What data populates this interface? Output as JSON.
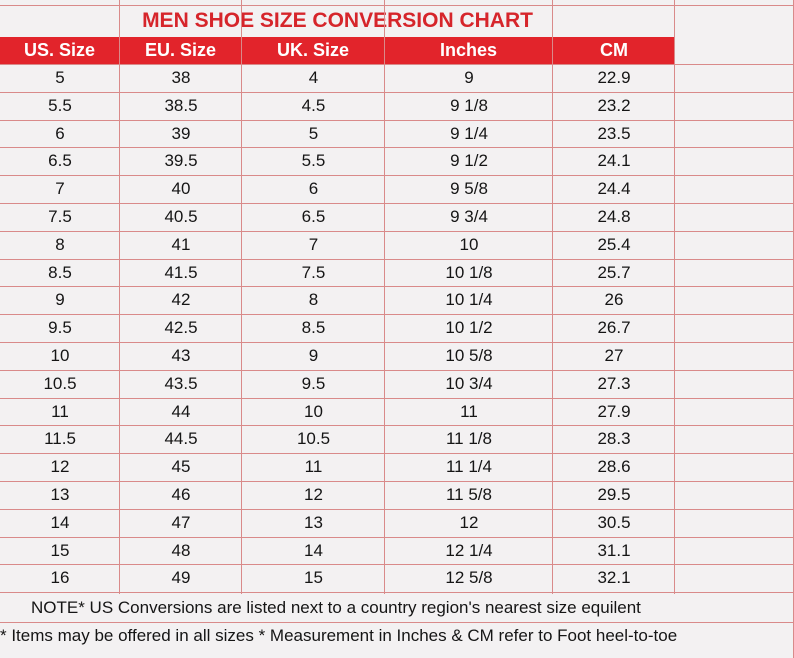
{
  "chart": {
    "title": "MEN SHOE SIZE CONVERSION CHART",
    "headers": [
      "US. Size",
      "EU. Size",
      "UK. Size",
      "Inches",
      "CM"
    ],
    "rows": [
      [
        "5",
        "38",
        "4",
        "9",
        "22.9"
      ],
      [
        "5.5",
        "38.5",
        "4.5",
        "9 1/8",
        "23.2"
      ],
      [
        "6",
        "39",
        "5",
        "9 1/4",
        "23.5"
      ],
      [
        "6.5",
        "39.5",
        "5.5",
        "9 1/2",
        "24.1"
      ],
      [
        "7",
        "40",
        "6",
        "9 5/8",
        "24.4"
      ],
      [
        "7.5",
        "40.5",
        "6.5",
        "9 3/4",
        "24.8"
      ],
      [
        "8",
        "41",
        "7",
        "10",
        "25.4"
      ],
      [
        "8.5",
        "41.5",
        "7.5",
        "10 1/8",
        "25.7"
      ],
      [
        "9",
        "42",
        "8",
        "10 1/4",
        "26"
      ],
      [
        "9.5",
        "42.5",
        "8.5",
        "10 1/2",
        "26.7"
      ],
      [
        "10",
        "43",
        "9",
        "10 5/8",
        "27"
      ],
      [
        "10.5",
        "43.5",
        "9.5",
        "10 3/4",
        "27.3"
      ],
      [
        "11",
        "44",
        "10",
        "11",
        "27.9"
      ],
      [
        "11.5",
        "44.5",
        "10.5",
        "11 1/8",
        "28.3"
      ],
      [
        "12",
        "45",
        "11",
        "11 1/4",
        "28.6"
      ],
      [
        "13",
        "46",
        "12",
        "11 5/8",
        "29.5"
      ],
      [
        "14",
        "47",
        "13",
        "12",
        "30.5"
      ],
      [
        "15",
        "48",
        "14",
        "12 1/4",
        "31.1"
      ],
      [
        "16",
        "49",
        "15",
        "12 5/8",
        "32.1"
      ]
    ],
    "note": "NOTE* US Conversions are listed next to a country region's nearest size equilent",
    "footnote": "* Items may be offered in all sizes * Measurement in Inches & CM refer to Foot heel-to-toe"
  },
  "colors": {
    "title": "#d6252b",
    "header_bg": "#e2242b",
    "grid": "#d98a8a",
    "background": "#f3f1f2"
  }
}
